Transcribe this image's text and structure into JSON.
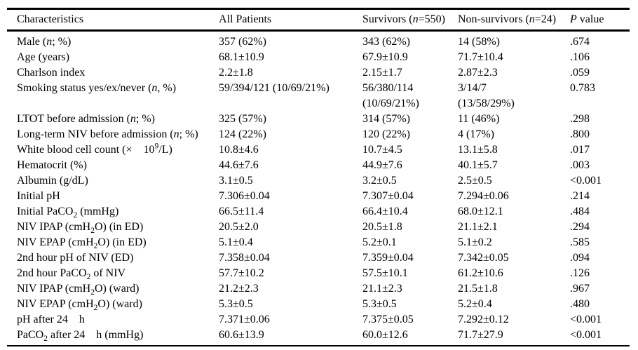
{
  "page": {
    "background": "#ffffff",
    "text_color": "#000000",
    "rule_color": "#000000"
  },
  "table": {
    "columns": [
      "Characteristics",
      "All Patients",
      "Survivors (*n*=550)",
      "Non-survivors (*n*=24)",
      "*P* value"
    ],
    "rows": [
      {
        "cells": [
          "Male (*n*; %)",
          "357 (62%)",
          "343 (62%)",
          "14 (58%)",
          ".674"
        ]
      },
      {
        "cells": [
          "Age (years)",
          "68.1±10.9",
          "67.9±10.9",
          "71.7±10.4",
          ".106"
        ]
      },
      {
        "cells": [
          "Charlson index",
          "2.2±1.8",
          "2.15±1.7",
          "2.87±2.3",
          ".059"
        ]
      },
      {
        "cells": [
          "Smoking status yes/ex/never (*n*, %)",
          "59/394/121 (10/69/21%)",
          "56/380/114\n(10/69/21%)",
          "3/14/7\n(13/58/29%)",
          "0.783"
        ]
      },
      {
        "cells": [
          "LTOT before admission (*n*; %)",
          "325 (57%)",
          "314 (57%)",
          "11 (46%)",
          ".298"
        ]
      },
      {
        "cells": [
          "Long-term NIV before admission (*n*; %)",
          "124 (22%)",
          "120 (22%)",
          "4 (17%)",
          ".800"
        ]
      },
      {
        "cells": [
          "White blood cell count (×    10^{9}/L)",
          "10.8±4.6",
          "10.7±4.5",
          "13.1±5.8",
          ".017"
        ]
      },
      {
        "cells": [
          "Hematocrit (%)",
          "44.6±7.6",
          "44.9±7.6",
          "40.1±5.7",
          ".003"
        ]
      },
      {
        "cells": [
          "Albumin (g/dL)",
          "3.1±0.5",
          "3.2±0.5",
          "2.5±0.5",
          "<0.001"
        ]
      },
      {
        "cells": [
          "Initial pH",
          "7.306±0.04",
          "7.307±0.04",
          "7.294±0.06",
          ".214"
        ]
      },
      {
        "cells": [
          "Initial PaCO_{2} (mmHg)",
          "66.5±11.4",
          "66.4±10.4",
          "68.0±12.1",
          ".484"
        ]
      },
      {
        "cells": [
          "NIV IPAP (cmH_{2}O) (in ED)",
          "20.5±2.0",
          "20.5±1.8",
          "21.1±2.1",
          ".294"
        ]
      },
      {
        "cells": [
          "NIV EPAP (cmH_{2}O) (in ED)",
          "5.1±0.4",
          "5.2±0.1",
          "5.1±0.2",
          ".585"
        ]
      },
      {
        "cells": [
          "2nd hour pH of NIV (ED)",
          "7.358±0.04",
          "7.359±0.04",
          "7.342±0.05",
          ".094"
        ]
      },
      {
        "cells": [
          "2nd hour PaCO_{2} of NIV",
          "57.7±10.2",
          "57.5±10.1",
          "61.2±10.6",
          ".126"
        ]
      },
      {
        "cells": [
          "NIV IPAP (cmH_{2}O) (ward)",
          "21.2±2.3",
          "21.1±2.3",
          "21.5±1.8",
          ".967"
        ]
      },
      {
        "cells": [
          "NIV EPAP (cmH_{2}O) (ward)",
          "5.3±0.5",
          "5.3±0.5",
          "5.2±0.4",
          ".480"
        ]
      },
      {
        "cells": [
          "pH after 24    h",
          "7.371±0.06",
          "7.375±0.05",
          "7.292±0.12",
          "<0.001"
        ]
      },
      {
        "cells": [
          "PaCO_{2} after 24    h (mmHg)",
          "60.6±13.9",
          "60.0±12.6",
          "71.7±27.9",
          "<0.001"
        ]
      }
    ]
  }
}
